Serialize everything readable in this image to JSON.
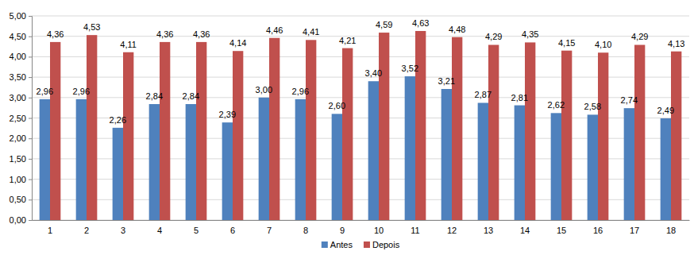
{
  "chart_data": {
    "type": "bar",
    "categories": [
      "1",
      "2",
      "3",
      "4",
      "5",
      "6",
      "7",
      "8",
      "9",
      "10",
      "11",
      "12",
      "13",
      "14",
      "15",
      "16",
      "17",
      "18"
    ],
    "series": [
      {
        "name": "Antes",
        "color": "#4f81bd",
        "values": [
          2.96,
          2.96,
          2.26,
          2.84,
          2.84,
          2.39,
          3.0,
          2.96,
          2.6,
          3.4,
          3.52,
          3.21,
          2.87,
          2.81,
          2.62,
          2.58,
          2.74,
          2.49
        ],
        "value_labels": [
          "2,96",
          "2,96",
          "2,26",
          "2,84",
          "2,84",
          "2,39",
          "3,00",
          "2,96",
          "2,60",
          "3,40",
          "3,52",
          "3,21",
          "2,87",
          "2,81",
          "2,62",
          "2,58",
          "2,74",
          "2,49"
        ]
      },
      {
        "name": "Depois",
        "color": "#c0504d",
        "values": [
          4.36,
          4.53,
          4.11,
          4.36,
          4.36,
          4.14,
          4.46,
          4.41,
          4.21,
          4.59,
          4.63,
          4.48,
          4.29,
          4.35,
          4.15,
          4.1,
          4.29,
          4.13
        ],
        "value_labels": [
          "4,36",
          "4,53",
          "4,11",
          "4,36",
          "4,36",
          "4,14",
          "4,46",
          "4,41",
          "4,21",
          "4,59",
          "4,63",
          "4,48",
          "4,29",
          "4,35",
          "4,15",
          "4,10",
          "4,29",
          "4,13"
        ]
      }
    ],
    "ylim": [
      0,
      5
    ],
    "yticks": [
      {
        "value": 0,
        "label": "0,00"
      },
      {
        "value": 0.5,
        "label": "0,50"
      },
      {
        "value": 1,
        "label": "1,00"
      },
      {
        "value": 1.5,
        "label": "1,50"
      },
      {
        "value": 2,
        "label": "2,00"
      },
      {
        "value": 2.5,
        "label": "2,50"
      },
      {
        "value": 3,
        "label": "3,00"
      },
      {
        "value": 3.5,
        "label": "3,50"
      },
      {
        "value": 4,
        "label": "4,00"
      },
      {
        "value": 4.5,
        "label": "4,50"
      },
      {
        "value": 5,
        "label": "5,00"
      }
    ],
    "grid": true,
    "data_labels": true,
    "legend": "bottom"
  }
}
